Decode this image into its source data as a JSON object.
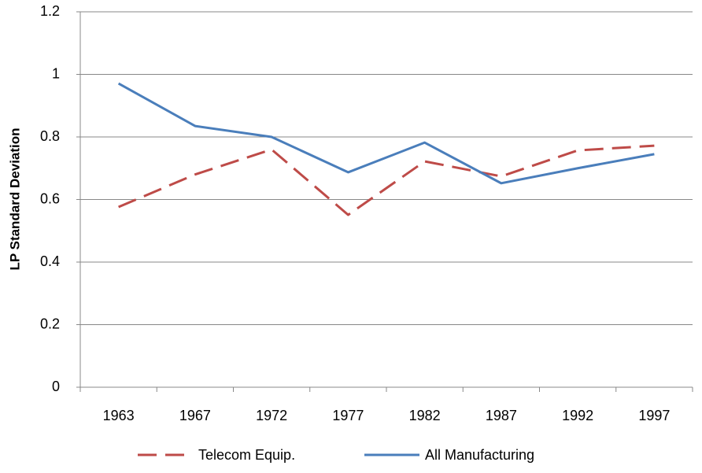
{
  "chart_data": {
    "type": "line",
    "y_label": "LP Standard Deviation",
    "categories": [
      "1963",
      "1967",
      "1972",
      "1977",
      "1982",
      "1987",
      "1992",
      "1997"
    ],
    "series": [
      {
        "name": "Telecom Equip.",
        "color": "#be4b48",
        "dashed": true,
        "values": [
          0.576,
          0.68,
          0.76,
          0.551,
          0.722,
          0.674,
          0.757,
          0.772
        ]
      },
      {
        "name": "All Manufacturing",
        "color": "#4a7ebb",
        "dashed": false,
        "values": [
          0.971,
          0.835,
          0.8,
          0.687,
          0.782,
          0.652,
          0.7,
          0.745
        ]
      }
    ],
    "ylim": [
      0,
      1.2
    ],
    "yticks": [
      0,
      0.2,
      0.4,
      0.6,
      0.8,
      1,
      1.2
    ],
    "grid": true,
    "legend": "bottom"
  }
}
